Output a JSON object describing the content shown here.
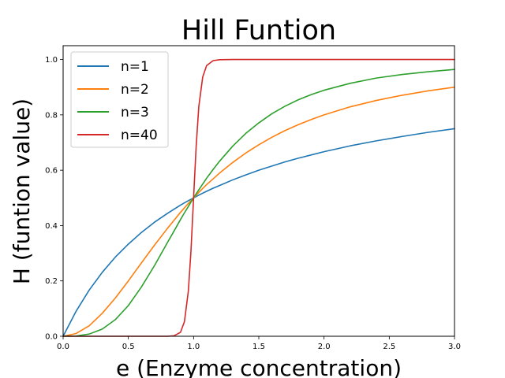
{
  "chart_data": {
    "type": "line",
    "title": "Hill Funtion",
    "xlabel": "e (Enzyme concentration)",
    "ylabel": "H (funtion value)",
    "xlim": [
      0.0,
      3.0
    ],
    "ylim": [
      0.0,
      1.05
    ],
    "x_ticks": [
      "0.0",
      "0.5",
      "1.0",
      "1.5",
      "2.0",
      "2.5",
      "3.0"
    ],
    "y_ticks": [
      "0.0",
      "0.2",
      "0.4",
      "0.6",
      "0.8",
      "1.0"
    ],
    "grid": false,
    "legend_position": "top-left",
    "x": [
      0.0,
      0.1,
      0.2,
      0.3,
      0.4,
      0.5,
      0.6,
      0.7,
      0.8,
      0.85,
      0.9,
      0.93,
      0.96,
      0.98,
      1.0,
      1.02,
      1.04,
      1.07,
      1.1,
      1.15,
      1.2,
      1.3,
      1.4,
      1.5,
      1.6,
      1.7,
      1.8,
      1.9,
      2.0,
      2.2,
      2.4,
      2.6,
      2.8,
      3.0
    ],
    "series": [
      {
        "name": "n=1",
        "color": "#1f77b4",
        "values": [
          0.0,
          0.091,
          0.167,
          0.231,
          0.286,
          0.333,
          0.375,
          0.412,
          0.444,
          0.459,
          0.474,
          0.482,
          0.49,
          0.495,
          0.5,
          0.505,
          0.51,
          0.517,
          0.524,
          0.535,
          0.545,
          0.565,
          0.583,
          0.6,
          0.615,
          0.63,
          0.643,
          0.655,
          0.667,
          0.688,
          0.706,
          0.722,
          0.737,
          0.75
        ]
      },
      {
        "name": "n=2",
        "color": "#ff7f0e",
        "values": [
          0.0,
          0.01,
          0.038,
          0.083,
          0.138,
          0.2,
          0.265,
          0.329,
          0.39,
          0.419,
          0.448,
          0.464,
          0.48,
          0.49,
          0.5,
          0.51,
          0.52,
          0.534,
          0.548,
          0.569,
          0.59,
          0.628,
          0.662,
          0.692,
          0.719,
          0.743,
          0.764,
          0.783,
          0.8,
          0.829,
          0.852,
          0.871,
          0.887,
          0.9
        ]
      },
      {
        "name": "n=3",
        "color": "#2ca02c",
        "values": [
          0.0,
          0.001,
          0.008,
          0.026,
          0.06,
          0.111,
          0.178,
          0.255,
          0.339,
          0.38,
          0.422,
          0.446,
          0.469,
          0.485,
          0.5,
          0.515,
          0.529,
          0.55,
          0.571,
          0.603,
          0.633,
          0.687,
          0.733,
          0.771,
          0.804,
          0.831,
          0.854,
          0.873,
          0.889,
          0.914,
          0.933,
          0.946,
          0.956,
          0.964
        ]
      },
      {
        "name": "n=40",
        "color": "#d62728",
        "values": [
          0.0,
          0.0,
          0.0,
          0.0,
          0.0,
          0.0,
          0.0,
          0.0,
          0.0,
          0.0015,
          0.0145,
          0.053,
          0.164,
          0.309,
          0.5,
          0.688,
          0.83,
          0.937,
          0.978,
          0.996,
          0.9993,
          1.0,
          1.0,
          1.0,
          1.0,
          1.0,
          1.0,
          1.0,
          1.0,
          1.0,
          1.0,
          1.0,
          1.0,
          1.0
        ]
      }
    ]
  }
}
